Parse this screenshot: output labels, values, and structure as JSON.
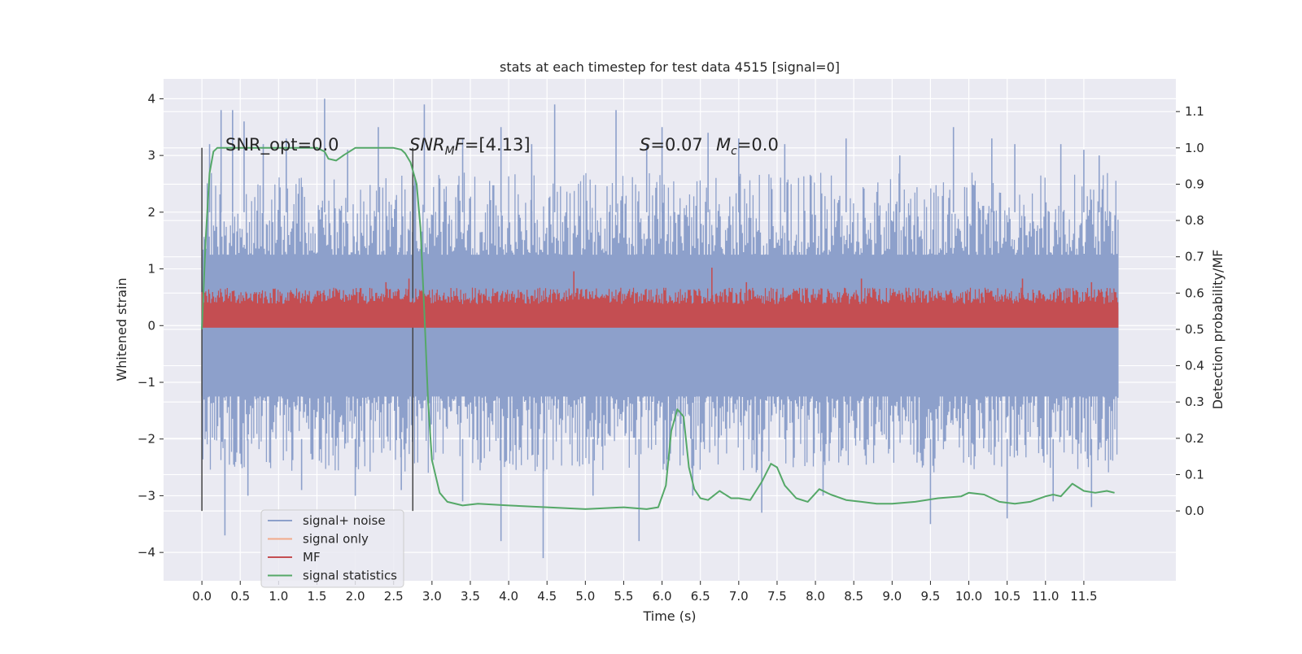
{
  "chart_data": {
    "type": "line",
    "title": "stats at each timestep for test data 4515 [signal=0]",
    "xlabel": "Time (s)",
    "ylabel": "Whitened strain",
    "y2label": "Detection probability/MF",
    "xlim": [
      -0.5,
      12.7
    ],
    "ylim": [
      -4.5,
      4.35
    ],
    "y2lim": [
      -0.1925,
      1.19
    ],
    "x_ticks": [
      0.0,
      0.5,
      1.0,
      1.5,
      2.0,
      2.5,
      3.0,
      3.5,
      4.0,
      4.5,
      5.0,
      5.5,
      6.0,
      6.5,
      7.0,
      7.5,
      8.0,
      8.5,
      9.0,
      9.5,
      10.0,
      10.5,
      11.0,
      11.5
    ],
    "x_tick_labels": [
      "0.0",
      "0.5",
      "1.0",
      "1.5",
      "2.0",
      "2.5",
      "3.0",
      "3.5",
      "4.0",
      "4.5",
      "5.0",
      "5.5",
      "6.0",
      "6.5",
      "7.0",
      "7.5",
      "8.0",
      "8.5",
      "9.0",
      "9.5",
      "10.0",
      "10.5",
      "11.0",
      "11.5"
    ],
    "y_ticks": [
      -4,
      -3,
      -2,
      -1,
      0,
      1,
      2,
      3,
      4
    ],
    "y_tick_labels": [
      "−4",
      "−3",
      "−2",
      "−1",
      "0",
      "1",
      "2",
      "3",
      "4"
    ],
    "y2_ticks": [
      0.0,
      0.1,
      0.2,
      0.3,
      0.4,
      0.5,
      0.6,
      0.7,
      0.8,
      0.9,
      1.0,
      1.1
    ],
    "y2_tick_labels": [
      "0.0",
      "0.1",
      "0.2",
      "0.3",
      "0.4",
      "0.5",
      "0.6",
      "0.7",
      "0.8",
      "0.9",
      "1.0",
      "1.1"
    ],
    "grid": true,
    "legend": {
      "placement": "lower-left",
      "entries": [
        {
          "label": "signal+ noise",
          "color": "#8da0cb"
        },
        {
          "label": "signal only",
          "color": "#f2a98a"
        },
        {
          "label": "MF",
          "color": "#c44e52"
        },
        {
          "label": "signal statistics",
          "color": "#55a868"
        }
      ]
    },
    "annotations": {
      "snr_opt": "SNR_opt=0.0",
      "snr_mf_base": "SNR",
      "snr_mf_sub": "M",
      "snr_mf_rest": "F=[4.13]",
      "s_base": "S",
      "s_rest": "=0.07",
      "mc_base": "M",
      "mc_sub": "c",
      "mc_rest": "=0.0"
    },
    "vertical_lines": [
      0.0,
      2.75
    ],
    "series": [
      {
        "name": "signal+ noise",
        "color": "#8da0cb",
        "axis": "left",
        "x_range": [
          0.0,
          11.95
        ],
        "band": [
          -2.5,
          2.5
        ],
        "spikes": [
          [
            0.1,
            3.2
          ],
          [
            0.25,
            3.8
          ],
          [
            0.4,
            3.8
          ],
          [
            0.55,
            3.6
          ],
          [
            0.8,
            3.2
          ],
          [
            1.1,
            3.3
          ],
          [
            1.6,
            4.0
          ],
          [
            1.9,
            3.1
          ],
          [
            2.3,
            3.5
          ],
          [
            2.9,
            3.9
          ],
          [
            3.4,
            3.3
          ],
          [
            3.9,
            3.5
          ],
          [
            4.3,
            3.2
          ],
          [
            4.6,
            3.9
          ],
          [
            5.4,
            3.8
          ],
          [
            5.8,
            3.2
          ],
          [
            6.0,
            3.5
          ],
          [
            6.6,
            3.4
          ],
          [
            7.0,
            3.3
          ],
          [
            7.6,
            3.2
          ],
          [
            8.4,
            3.3
          ],
          [
            9.1,
            3.0
          ],
          [
            9.8,
            3.5
          ],
          [
            10.3,
            3.3
          ],
          [
            10.6,
            3.2
          ],
          [
            11.2,
            3.2
          ],
          [
            11.5,
            3.1
          ],
          [
            11.7,
            3.0
          ],
          [
            0.3,
            -3.7
          ],
          [
            0.6,
            -3.0
          ],
          [
            1.3,
            -2.9
          ],
          [
            2.0,
            -3.0
          ],
          [
            2.6,
            -2.9
          ],
          [
            3.4,
            -3.1
          ],
          [
            3.9,
            -3.8
          ],
          [
            4.45,
            -4.1
          ],
          [
            5.1,
            -3.0
          ],
          [
            5.7,
            -3.8
          ],
          [
            6.4,
            -3.0
          ],
          [
            7.3,
            -3.3
          ],
          [
            8.1,
            -3.0
          ],
          [
            9.5,
            -3.5
          ],
          [
            10.5,
            -3.4
          ],
          [
            11.1,
            -3.1
          ],
          [
            11.6,
            -3.2
          ]
        ]
      },
      {
        "name": "signal only",
        "color": "#f2a98a",
        "axis": "left",
        "x": [
          0.0,
          11.95
        ],
        "y": [
          0.0,
          0.0
        ]
      },
      {
        "name": "MF",
        "color": "#c44e52",
        "axis": "right",
        "x_range": [
          0.0,
          11.95
        ],
        "band": [
          0.5,
          0.6
        ],
        "spikes": [
          [
            0.05,
            0.56
          ],
          [
            2.4,
            0.63
          ],
          [
            2.7,
            0.64
          ],
          [
            4.85,
            0.66
          ],
          [
            6.65,
            0.67
          ],
          [
            7.1,
            0.63
          ],
          [
            8.6,
            0.64
          ],
          [
            10.7,
            0.64
          ],
          [
            11.6,
            0.63
          ]
        ]
      },
      {
        "name": "signal statistics",
        "color": "#55a868",
        "axis": "right",
        "x": [
          0.0,
          0.05,
          0.1,
          0.15,
          0.2,
          0.3,
          0.5,
          1.0,
          1.5,
          1.6,
          1.65,
          1.75,
          1.85,
          2.0,
          2.3,
          2.5,
          2.6,
          2.65,
          2.72,
          2.8,
          2.85,
          2.9,
          2.95,
          3.0,
          3.1,
          3.2,
          3.4,
          3.6,
          4.0,
          4.5,
          5.0,
          5.5,
          5.8,
          5.95,
          6.05,
          6.12,
          6.2,
          6.28,
          6.35,
          6.42,
          6.5,
          6.6,
          6.75,
          6.9,
          7.0,
          7.15,
          7.3,
          7.42,
          7.5,
          7.6,
          7.75,
          7.9,
          8.05,
          8.2,
          8.4,
          8.6,
          8.8,
          9.0,
          9.3,
          9.6,
          9.9,
          10.0,
          10.2,
          10.4,
          10.6,
          10.8,
          11.0,
          11.1,
          11.2,
          11.35,
          11.5,
          11.65,
          11.8,
          11.9
        ],
        "y": [
          0.5,
          0.75,
          0.93,
          0.99,
          1.0,
          1.0,
          1.0,
          1.0,
          1.0,
          0.99,
          0.97,
          0.965,
          0.98,
          1.0,
          1.0,
          1.0,
          0.995,
          0.985,
          0.96,
          0.9,
          0.78,
          0.55,
          0.3,
          0.14,
          0.05,
          0.025,
          0.015,
          0.02,
          0.015,
          0.01,
          0.005,
          0.01,
          0.005,
          0.01,
          0.07,
          0.22,
          0.28,
          0.26,
          0.12,
          0.06,
          0.035,
          0.03,
          0.055,
          0.035,
          0.035,
          0.03,
          0.08,
          0.13,
          0.12,
          0.07,
          0.035,
          0.025,
          0.06,
          0.045,
          0.03,
          0.025,
          0.02,
          0.02,
          0.025,
          0.035,
          0.04,
          0.05,
          0.045,
          0.025,
          0.02,
          0.025,
          0.04,
          0.045,
          0.04,
          0.075,
          0.055,
          0.05,
          0.055,
          0.05
        ]
      }
    ]
  }
}
